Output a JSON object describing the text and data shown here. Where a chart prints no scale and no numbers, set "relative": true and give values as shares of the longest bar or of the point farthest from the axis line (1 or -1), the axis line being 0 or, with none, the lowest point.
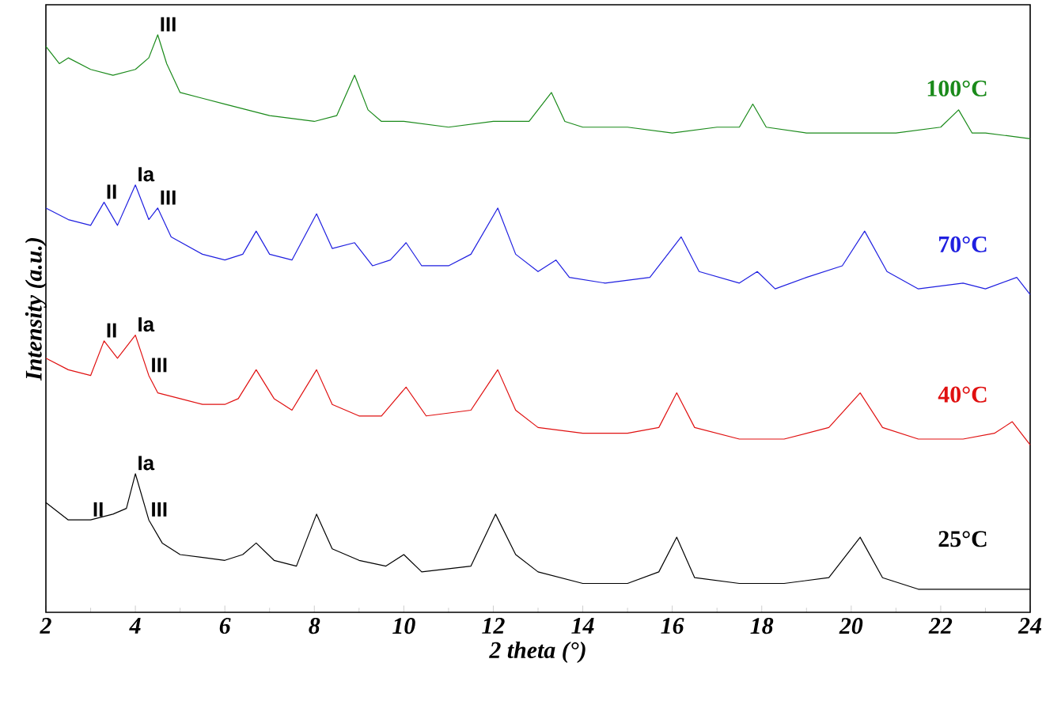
{
  "chart_data": {
    "type": "line",
    "relative": true,
    "xlabel": "2 theta (°)",
    "ylabel": "Intensity (a.u.)",
    "xlim": [
      2,
      24
    ],
    "xticks": [
      2,
      4,
      6,
      8,
      10,
      12,
      14,
      16,
      18,
      20,
      22,
      24
    ],
    "series": [
      {
        "name": "100°C",
        "color": "#1a8a1a",
        "x": [
          2,
          2.3,
          2.5,
          3,
          3.5,
          4,
          4.3,
          4.5,
          4.7,
          5,
          5.5,
          6,
          7,
          8,
          8.5,
          8.9,
          9.2,
          9.5,
          10,
          11,
          12,
          12.8,
          13.3,
          13.6,
          14,
          15,
          16,
          17,
          17.5,
          17.8,
          18.1,
          19,
          20,
          21,
          22,
          22.4,
          22.7,
          23,
          24
        ],
        "values": [
          0.98,
          0.95,
          0.96,
          0.94,
          0.93,
          0.94,
          0.96,
          1.0,
          0.95,
          0.9,
          0.89,
          0.88,
          0.86,
          0.85,
          0.86,
          0.93,
          0.87,
          0.85,
          0.85,
          0.84,
          0.85,
          0.85,
          0.9,
          0.85,
          0.84,
          0.84,
          0.83,
          0.84,
          0.84,
          0.88,
          0.84,
          0.83,
          0.83,
          0.83,
          0.84,
          0.87,
          0.83,
          0.83,
          0.82
        ]
      },
      {
        "name": "70°C",
        "color": "#1f1fe0",
        "x": [
          2,
          2.5,
          3,
          3.3,
          3.6,
          4,
          4.3,
          4.5,
          4.8,
          5.5,
          6,
          6.4,
          6.7,
          7,
          7.5,
          8.05,
          8.4,
          8.9,
          9.3,
          9.7,
          10.05,
          10.4,
          11,
          11.5,
          12.1,
          12.5,
          13,
          13.4,
          13.7,
          14.5,
          15.5,
          16.2,
          16.6,
          17.5,
          17.9,
          18.3,
          19,
          19.8,
          20.3,
          20.8,
          21.5,
          22.5,
          23,
          23.7,
          24
        ],
        "values": [
          0.7,
          0.68,
          0.67,
          0.71,
          0.67,
          0.74,
          0.68,
          0.7,
          0.65,
          0.62,
          0.61,
          0.62,
          0.66,
          0.62,
          0.61,
          0.69,
          0.63,
          0.64,
          0.6,
          0.61,
          0.64,
          0.6,
          0.6,
          0.62,
          0.7,
          0.62,
          0.59,
          0.61,
          0.58,
          0.57,
          0.58,
          0.65,
          0.59,
          0.57,
          0.59,
          0.56,
          0.58,
          0.6,
          0.66,
          0.59,
          0.56,
          0.57,
          0.56,
          0.58,
          0.55
        ]
      },
      {
        "name": "40°C",
        "color": "#e01010",
        "x": [
          2,
          2.5,
          3,
          3.3,
          3.6,
          4,
          4.3,
          4.5,
          5,
          5.5,
          6,
          6.3,
          6.7,
          7.1,
          7.5,
          8.05,
          8.4,
          9,
          9.5,
          10.05,
          10.5,
          11.5,
          12.1,
          12.5,
          13,
          14,
          15,
          15.7,
          16.1,
          16.5,
          17.5,
          18.5,
          19.5,
          20.2,
          20.7,
          21.5,
          22.5,
          23.2,
          23.6,
          24
        ],
        "values": [
          0.44,
          0.42,
          0.41,
          0.47,
          0.44,
          0.48,
          0.41,
          0.38,
          0.37,
          0.36,
          0.36,
          0.37,
          0.42,
          0.37,
          0.35,
          0.42,
          0.36,
          0.34,
          0.34,
          0.39,
          0.34,
          0.35,
          0.42,
          0.35,
          0.32,
          0.31,
          0.31,
          0.32,
          0.38,
          0.32,
          0.3,
          0.3,
          0.32,
          0.38,
          0.32,
          0.3,
          0.3,
          0.31,
          0.33,
          0.29
        ]
      },
      {
        "name": "25°C",
        "color": "#000000",
        "x": [
          2,
          2.5,
          3,
          3.5,
          3.8,
          4,
          4.3,
          4.6,
          5,
          6,
          6.4,
          6.7,
          7.1,
          7.6,
          8.05,
          8.4,
          9,
          9.6,
          10,
          10.4,
          11.5,
          12.05,
          12.5,
          13,
          14,
          15,
          15.7,
          16.1,
          16.5,
          17.5,
          18.5,
          19.5,
          20.2,
          20.7,
          21.5,
          22.5,
          24
        ],
        "values": [
          0.19,
          0.16,
          0.16,
          0.17,
          0.18,
          0.24,
          0.16,
          0.12,
          0.1,
          0.09,
          0.1,
          0.12,
          0.09,
          0.08,
          0.17,
          0.11,
          0.09,
          0.08,
          0.1,
          0.07,
          0.08,
          0.17,
          0.1,
          0.07,
          0.05,
          0.05,
          0.07,
          0.13,
          0.06,
          0.05,
          0.05,
          0.06,
          0.13,
          0.06,
          0.04,
          0.04,
          0.04
        ]
      }
    ],
    "annotations": [
      {
        "text": "III",
        "x": 4.5,
        "y": 1.0
      },
      {
        "text": "II",
        "x": 3.3,
        "y": 0.71
      },
      {
        "text": "Ia",
        "x": 4,
        "y": 0.74
      },
      {
        "text": "III",
        "x": 4.5,
        "y": 0.7
      },
      {
        "text": "II",
        "x": 3.3,
        "y": 0.47
      },
      {
        "text": "Ia",
        "x": 4,
        "y": 0.48
      },
      {
        "text": "III",
        "x": 4.3,
        "y": 0.41
      },
      {
        "text": "II",
        "x": 3,
        "y": 0.16
      },
      {
        "text": "Ia",
        "x": 4,
        "y": 0.24
      },
      {
        "text": "III",
        "x": 4.3,
        "y": 0.16
      }
    ]
  }
}
